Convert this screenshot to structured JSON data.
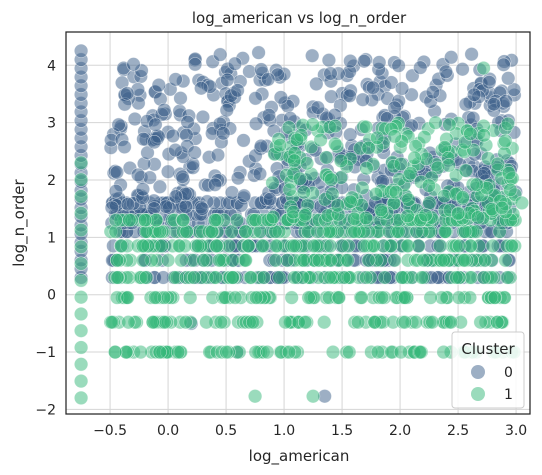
{
  "chart_data": {
    "type": "scatter",
    "title": "log_american vs log_n_order",
    "xlabel": "log_american",
    "ylabel": "log_n_order",
    "xlim": [
      -0.88,
      3.12
    ],
    "ylim": [
      -2.08,
      4.58
    ],
    "xticks": [
      -0.5,
      0.0,
      0.5,
      1.0,
      1.5,
      2.0,
      2.5,
      3.0
    ],
    "xtick_labels": [
      "−0.5",
      "0.0",
      "0.5",
      "1.0",
      "1.5",
      "2.0",
      "2.5",
      "3.0"
    ],
    "yticks": [
      -2,
      -1,
      0,
      1,
      2,
      3,
      4
    ],
    "ytick_labels": [
      "−2",
      "−1",
      "0",
      "1",
      "2",
      "3",
      "4"
    ],
    "grid": true,
    "legend": {
      "title": "Cluster",
      "placement": "bottom-right",
      "entries": [
        "0",
        "1"
      ]
    },
    "series": [
      {
        "name": "0",
        "color": "#3b5f8a",
        "alpha": 0.5,
        "y_levels": [
          0.3,
          0.6,
          0.85,
          1.1,
          1.25,
          1.4,
          1.6
        ],
        "levels_x_range": [
          -0.5,
          2.95
        ],
        "scatter_region": {
          "x": [
            -0.5,
            3.0
          ],
          "y": [
            1.5,
            4.2
          ]
        },
        "column_x": -0.75,
        "column_y_range": [
          0.3,
          4.25
        ],
        "low_points": [
          {
            "x": 0.2,
            "y": -0.5
          },
          {
            "x": 0.6,
            "y": -1.0
          },
          {
            "x": 1.35,
            "y": -1.77
          },
          {
            "x": 0.78,
            "y": 4.22
          },
          {
            "x": 1.82,
            "y": 4.05
          },
          {
            "x": 2.72,
            "y": 0.3
          }
        ]
      },
      {
        "name": "1",
        "color": "#35b779",
        "alpha": 0.5,
        "y_levels": [
          -1.0,
          -0.48,
          -0.05,
          0.3,
          0.6,
          0.85,
          1.1,
          1.3
        ],
        "levels_x_range": [
          -0.5,
          3.0
        ],
        "scatter_region": {
          "x": [
            0.9,
            3.0
          ],
          "y": [
            1.3,
            3.0
          ]
        },
        "column_x": -0.75,
        "column_y_range": [
          -1.8,
          2.3
        ],
        "low_points": [
          {
            "x": 0.75,
            "y": -1.77
          },
          {
            "x": 1.25,
            "y": -1.77
          },
          {
            "x": 2.72,
            "y": 3.95
          },
          {
            "x": 3.05,
            "y": 1.6
          }
        ]
      }
    ]
  }
}
